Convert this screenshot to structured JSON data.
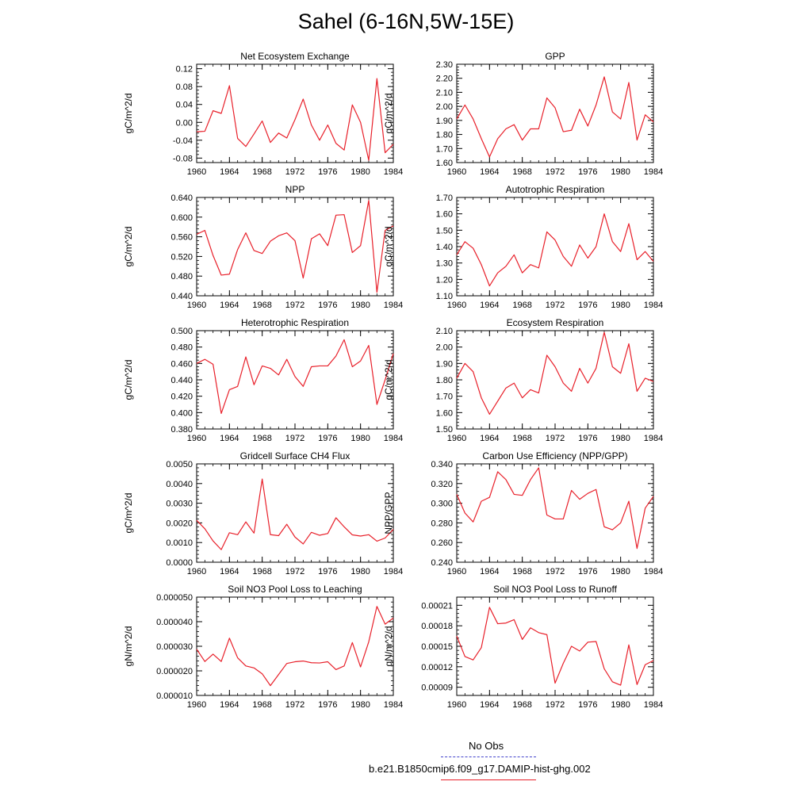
{
  "figure": {
    "title": "Sahel (6-16N,5W-15E)"
  },
  "legend": {
    "entries": [
      {
        "label": "No Obs",
        "color": "#4444cc",
        "style": "dashed"
      },
      {
        "label": "b.e21.B1850cmip6.f09_g17.DAMIP-hist-ghg.002",
        "color": "#e8202a",
        "style": "solid"
      }
    ]
  },
  "chart_data": [
    {
      "type": "line",
      "title": "Net Ecosystem Exchange",
      "ylabel": "gC/m^2/d",
      "xlabel": "",
      "xlim": [
        1960,
        1984
      ],
      "ylim": [
        -0.09,
        0.13
      ],
      "xticks": [
        1960,
        1964,
        1968,
        1972,
        1976,
        1980,
        1984
      ],
      "yticks": [
        -0.08,
        -0.04,
        0.0,
        0.04,
        0.08,
        0.12
      ],
      "ytick_labels": [
        "-0.08",
        "-0.04",
        "0.00",
        "0.04",
        "0.08",
        "0.12"
      ],
      "series": [
        {
          "color": "#e8202a",
          "x": [
            1960,
            1961,
            1962,
            1963,
            1964,
            1965,
            1966,
            1967,
            1968,
            1969,
            1970,
            1971,
            1972,
            1973,
            1974,
            1975,
            1976,
            1977,
            1978,
            1979,
            1980,
            1981,
            1982,
            1983,
            1984
          ],
          "y": [
            -0.021,
            -0.02,
            0.026,
            0.02,
            0.082,
            -0.036,
            -0.054,
            -0.026,
            0.003,
            -0.045,
            -0.024,
            -0.035,
            0.006,
            0.052,
            -0.006,
            -0.04,
            -0.006,
            -0.047,
            -0.062,
            0.039,
            0.0,
            -0.085,
            0.098,
            -0.068,
            -0.049
          ]
        }
      ]
    },
    {
      "type": "line",
      "title": "GPP",
      "ylabel": "gC/m^2/d",
      "xlabel": "",
      "xlim": [
        1960,
        1984
      ],
      "ylim": [
        1.6,
        2.3
      ],
      "xticks": [
        1960,
        1964,
        1968,
        1972,
        1976,
        1980,
        1984
      ],
      "yticks": [
        1.6,
        1.7,
        1.8,
        1.9,
        2.0,
        2.1,
        2.2,
        2.3
      ],
      "ytick_labels": [
        "1.60",
        "1.70",
        "1.80",
        "1.90",
        "2.00",
        "2.10",
        "2.20",
        "2.30"
      ],
      "series": [
        {
          "color": "#e8202a",
          "x": [
            1960,
            1961,
            1962,
            1963,
            1964,
            1965,
            1966,
            1967,
            1968,
            1969,
            1970,
            1971,
            1972,
            1973,
            1974,
            1975,
            1976,
            1977,
            1978,
            1979,
            1980,
            1981,
            1982,
            1983,
            1984
          ],
          "y": [
            1.91,
            2.01,
            1.91,
            1.77,
            1.64,
            1.77,
            1.84,
            1.87,
            1.76,
            1.84,
            1.84,
            2.06,
            1.99,
            1.82,
            1.83,
            1.98,
            1.86,
            2.01,
            2.21,
            1.96,
            1.91,
            2.17,
            1.76,
            1.94,
            1.89
          ]
        }
      ]
    },
    {
      "type": "line",
      "title": "NPP",
      "ylabel": "gC/m^2/d",
      "xlabel": "",
      "xlim": [
        1960,
        1984
      ],
      "ylim": [
        0.44,
        0.64
      ],
      "xticks": [
        1960,
        1964,
        1968,
        1972,
        1976,
        1980,
        1984
      ],
      "yticks": [
        0.44,
        0.48,
        0.52,
        0.56,
        0.6,
        0.64
      ],
      "ytick_labels": [
        "0.440",
        "0.480",
        "0.520",
        "0.560",
        "0.600",
        "0.640"
      ],
      "series": [
        {
          "color": "#e8202a",
          "x": [
            1960,
            1961,
            1962,
            1963,
            1964,
            1965,
            1966,
            1967,
            1968,
            1969,
            1970,
            1971,
            1972,
            1973,
            1974,
            1975,
            1976,
            1977,
            1978,
            1979,
            1980,
            1981,
            1982,
            1983,
            1984
          ],
          "y": [
            0.565,
            0.573,
            0.522,
            0.482,
            0.484,
            0.534,
            0.568,
            0.532,
            0.526,
            0.551,
            0.562,
            0.568,
            0.552,
            0.476,
            0.556,
            0.566,
            0.542,
            0.604,
            0.605,
            0.528,
            0.542,
            0.634,
            0.447,
            0.573,
            0.582
          ]
        }
      ]
    },
    {
      "type": "line",
      "title": "Autotrophic Respiration",
      "ylabel": "gC/m^2/d",
      "xlabel": "",
      "xlim": [
        1960,
        1984
      ],
      "ylim": [
        1.1,
        1.7
      ],
      "xticks": [
        1960,
        1964,
        1968,
        1972,
        1976,
        1980,
        1984
      ],
      "yticks": [
        1.1,
        1.2,
        1.3,
        1.4,
        1.5,
        1.6,
        1.7
      ],
      "ytick_labels": [
        "1.10",
        "1.20",
        "1.30",
        "1.40",
        "1.50",
        "1.60",
        "1.70"
      ],
      "series": [
        {
          "color": "#e8202a",
          "x": [
            1960,
            1961,
            1962,
            1963,
            1964,
            1965,
            1966,
            1967,
            1968,
            1969,
            1970,
            1971,
            1972,
            1973,
            1974,
            1975,
            1976,
            1977,
            1978,
            1979,
            1980,
            1981,
            1982,
            1983,
            1984
          ],
          "y": [
            1.35,
            1.43,
            1.39,
            1.29,
            1.16,
            1.24,
            1.28,
            1.35,
            1.24,
            1.29,
            1.27,
            1.49,
            1.44,
            1.34,
            1.28,
            1.41,
            1.33,
            1.4,
            1.6,
            1.43,
            1.37,
            1.54,
            1.32,
            1.37,
            1.31
          ]
        }
      ]
    },
    {
      "type": "line",
      "title": "Heterotrophic Respiration",
      "ylabel": "gC/m^2/d",
      "xlabel": "",
      "xlim": [
        1960,
        1984
      ],
      "ylim": [
        0.38,
        0.5
      ],
      "xticks": [
        1960,
        1964,
        1968,
        1972,
        1976,
        1980,
        1984
      ],
      "yticks": [
        0.38,
        0.4,
        0.42,
        0.44,
        0.46,
        0.48,
        0.5
      ],
      "ytick_labels": [
        "0.380",
        "0.400",
        "0.420",
        "0.440",
        "0.460",
        "0.480",
        "0.500"
      ],
      "series": [
        {
          "color": "#e8202a",
          "x": [
            1960,
            1961,
            1962,
            1963,
            1964,
            1965,
            1966,
            1967,
            1968,
            1969,
            1970,
            1971,
            1972,
            1973,
            1974,
            1975,
            1976,
            1977,
            1978,
            1979,
            1980,
            1981,
            1982,
            1983,
            1984
          ],
          "y": [
            0.46,
            0.465,
            0.459,
            0.399,
            0.428,
            0.432,
            0.468,
            0.434,
            0.457,
            0.454,
            0.446,
            0.465,
            0.444,
            0.432,
            0.456,
            0.457,
            0.457,
            0.469,
            0.489,
            0.456,
            0.463,
            0.482,
            0.41,
            0.44,
            0.472
          ]
        }
      ]
    },
    {
      "type": "line",
      "title": "Ecosystem Respiration",
      "ylabel": "gC/m^2/d",
      "xlabel": "",
      "xlim": [
        1960,
        1984
      ],
      "ylim": [
        1.5,
        2.1
      ],
      "xticks": [
        1960,
        1964,
        1968,
        1972,
        1976,
        1980,
        1984
      ],
      "yticks": [
        1.5,
        1.6,
        1.7,
        1.8,
        1.9,
        2.0,
        2.1
      ],
      "ytick_labels": [
        "1.50",
        "1.60",
        "1.70",
        "1.80",
        "1.90",
        "2.00",
        "2.10"
      ],
      "series": [
        {
          "color": "#e8202a",
          "x": [
            1960,
            1961,
            1962,
            1963,
            1964,
            1965,
            1966,
            1967,
            1968,
            1969,
            1970,
            1971,
            1972,
            1973,
            1974,
            1975,
            1976,
            1977,
            1978,
            1979,
            1980,
            1981,
            1982,
            1983,
            1984
          ],
          "y": [
            1.81,
            1.9,
            1.85,
            1.69,
            1.59,
            1.67,
            1.75,
            1.78,
            1.69,
            1.74,
            1.72,
            1.95,
            1.88,
            1.78,
            1.73,
            1.87,
            1.78,
            1.87,
            2.09,
            1.88,
            1.84,
            2.02,
            1.73,
            1.81,
            1.79
          ]
        }
      ]
    },
    {
      "type": "line",
      "title": "Gridcell Surface CH4 Flux",
      "ylabel": "gC/m^2/d",
      "xlabel": "",
      "xlim": [
        1960,
        1984
      ],
      "ylim": [
        0.0,
        0.005
      ],
      "xticks": [
        1960,
        1964,
        1968,
        1972,
        1976,
        1980,
        1984
      ],
      "yticks": [
        0.0,
        0.001,
        0.002,
        0.003,
        0.004,
        0.005
      ],
      "ytick_labels": [
        "0.0000",
        "0.0010",
        "0.0020",
        "0.0030",
        "0.0040",
        "0.0050"
      ],
      "series": [
        {
          "color": "#e8202a",
          "x": [
            1960,
            1961,
            1962,
            1963,
            1964,
            1965,
            1966,
            1967,
            1968,
            1969,
            1970,
            1971,
            1972,
            1973,
            1974,
            1975,
            1976,
            1977,
            1978,
            1979,
            1980,
            1981,
            1982,
            1983,
            1984
          ],
          "y": [
            0.00213,
            0.0017,
            0.00108,
            0.00064,
            0.0015,
            0.0014,
            0.00205,
            0.00148,
            0.00423,
            0.0014,
            0.00135,
            0.00193,
            0.00128,
            0.00093,
            0.00152,
            0.00137,
            0.00146,
            0.00226,
            0.0018,
            0.00139,
            0.00133,
            0.0014,
            0.00107,
            0.00123,
            0.00167
          ]
        }
      ]
    },
    {
      "type": "line",
      "title": "Carbon Use Efficiency (NPP/GPP)",
      "ylabel": "NPP/GPP",
      "xlabel": "",
      "xlim": [
        1960,
        1984
      ],
      "ylim": [
        0.24,
        0.34
      ],
      "xticks": [
        1960,
        1964,
        1968,
        1972,
        1976,
        1980,
        1984
      ],
      "yticks": [
        0.24,
        0.26,
        0.28,
        0.3,
        0.32,
        0.34
      ],
      "ytick_labels": [
        "0.240",
        "0.260",
        "0.280",
        "0.300",
        "0.320",
        "0.340"
      ],
      "series": [
        {
          "color": "#e8202a",
          "x": [
            1960,
            1961,
            1962,
            1963,
            1964,
            1965,
            1966,
            1967,
            1968,
            1969,
            1970,
            1971,
            1972,
            1973,
            1974,
            1975,
            1976,
            1977,
            1978,
            1979,
            1980,
            1981,
            1982,
            1983,
            1984
          ],
          "y": [
            0.309,
            0.29,
            0.281,
            0.302,
            0.306,
            0.332,
            0.324,
            0.309,
            0.308,
            0.324,
            0.336,
            0.288,
            0.284,
            0.284,
            0.313,
            0.304,
            0.31,
            0.314,
            0.276,
            0.273,
            0.28,
            0.302,
            0.254,
            0.295,
            0.307
          ]
        }
      ]
    },
    {
      "type": "line",
      "title": "Soil NO3 Pool Loss to Leaching",
      "ylabel": "gN/m^2/d",
      "xlabel": "",
      "xlim": [
        1960,
        1984
      ],
      "ylim": [
        1e-05,
        5e-05
      ],
      "xticks": [
        1960,
        1964,
        1968,
        1972,
        1976,
        1980,
        1984
      ],
      "yticks": [
        1e-05,
        2e-05,
        3e-05,
        4e-05,
        5e-05
      ],
      "ytick_labels": [
        "0.000010",
        "0.000020",
        "0.000030",
        "0.000040",
        "0.000050"
      ],
      "series": [
        {
          "color": "#e8202a",
          "x": [
            1960,
            1961,
            1962,
            1963,
            1964,
            1965,
            1966,
            1967,
            1968,
            1969,
            1970,
            1971,
            1972,
            1973,
            1974,
            1975,
            1976,
            1977,
            1978,
            1979,
            1980,
            1981,
            1982,
            1983,
            1984
          ],
          "y": [
            2.88e-05,
            2.38e-05,
            2.68e-05,
            2.38e-05,
            3.33e-05,
            2.53e-05,
            2.2e-05,
            2.12e-05,
            1.88e-05,
            1.4e-05,
            1.85e-05,
            2.3e-05,
            2.37e-05,
            2.4e-05,
            2.33e-05,
            2.32e-05,
            2.37e-05,
            2.05e-05,
            2.2e-05,
            3.15e-05,
            2.16e-05,
            3.18e-05,
            4.62e-05,
            3.9e-05,
            4.15e-05
          ]
        }
      ]
    },
    {
      "type": "line",
      "title": "Soil NO3 Pool Loss to Runoff",
      "ylabel": "gN/m^2/d",
      "xlabel": "",
      "xlim": [
        1960,
        1984
      ],
      "ylim": [
        7.8e-05,
        0.000222
      ],
      "xticks": [
        1960,
        1964,
        1968,
        1972,
        1976,
        1980,
        1984
      ],
      "yticks": [
        9e-05,
        0.00012,
        0.00015,
        0.00018,
        0.00021
      ],
      "ytick_labels": [
        "0.00009",
        "0.00012",
        "0.00015",
        "0.00018",
        "0.00021"
      ],
      "series": [
        {
          "color": "#e8202a",
          "x": [
            1960,
            1961,
            1962,
            1963,
            1964,
            1965,
            1966,
            1967,
            1968,
            1969,
            1970,
            1971,
            1972,
            1973,
            1974,
            1975,
            1976,
            1977,
            1978,
            1979,
            1980,
            1981,
            1982,
            1983,
            1984
          ],
          "y": [
            0.000165,
            0.000135,
            0.00013,
            0.000148,
            0.000207,
            0.000183,
            0.000184,
            0.000189,
            0.00016,
            0.000177,
            0.00017,
            0.000167,
            9.6e-05,
            0.000125,
            0.00015,
            0.000143,
            0.000156,
            0.000157,
            0.000117,
            9.8e-05,
            9.3e-05,
            0.000152,
            9.4e-05,
            0.000123,
            0.000129
          ]
        }
      ]
    }
  ]
}
